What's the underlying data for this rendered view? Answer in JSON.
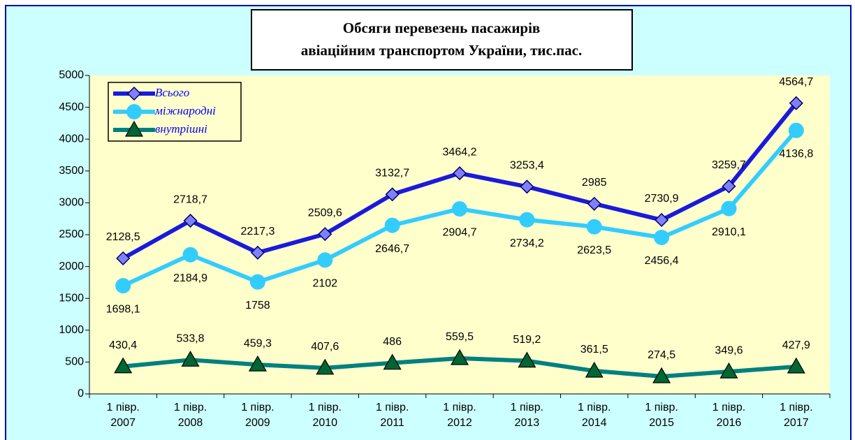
{
  "chart_data": {
    "type": "line",
    "title": [
      "Обсяги перевезень пасажирів",
      "авіаційним транспортом України, тис.пас."
    ],
    "categories": [
      "1 півр. 2007",
      "1 півр. 2008",
      "1 півр. 2009",
      "1 півр. 2010",
      "1 півр. 2011",
      "1 півр. 2012",
      "1 півр. 2013",
      "1 півр. 2014",
      "1 півр. 2015",
      "1 півр. 2016",
      "1 півр. 2017"
    ],
    "series": [
      {
        "name": "Всього",
        "color": "#1a1adc",
        "marker": "diamond",
        "values": [
          2128.5,
          2718.7,
          2217.3,
          2509.6,
          3132.7,
          3464.2,
          3253.4,
          2985,
          2730.9,
          3259.7,
          4564.7
        ],
        "value_labels": [
          "2128,5",
          "2718,7",
          "2217,3",
          "2509,6",
          "3132,7",
          "3464,2",
          "3253,4",
          "2985",
          "2730,9",
          "3259,7",
          "4564,7"
        ]
      },
      {
        "name": "міжнародні",
        "color": "#33ccff",
        "marker": "circle",
        "values": [
          1698.1,
          2184.9,
          1758,
          2102,
          2646.7,
          2904.7,
          2734.2,
          2623.5,
          2456.4,
          2910.1,
          4136.8
        ],
        "value_labels": [
          "1698,1",
          "2184,9",
          "1758",
          "2102",
          "2646,7",
          "2904,7",
          "2734,2",
          "2623,5",
          "2456,4",
          "2910,1",
          "4136,8"
        ]
      },
      {
        "name": "внутрішні",
        "color": "#008080",
        "marker": "triangle",
        "values": [
          430.4,
          533.8,
          459.3,
          407.6,
          486,
          559.5,
          519.2,
          361.5,
          274.5,
          349.6,
          427.9
        ],
        "value_labels": [
          "430,4",
          "533,8",
          "459,3",
          "407,6",
          "486",
          "559,5",
          "519,2",
          "361,5",
          "274,5",
          "349,6",
          "427,9"
        ]
      }
    ],
    "ylim": [
      0,
      5000
    ],
    "yticks": [
      0,
      500,
      1000,
      1500,
      2000,
      2500,
      3000,
      3500,
      4000,
      4500,
      5000
    ]
  }
}
